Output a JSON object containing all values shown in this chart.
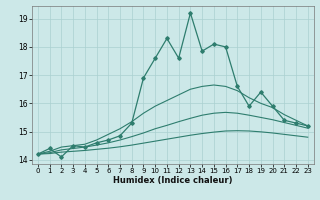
{
  "x": [
    0,
    1,
    2,
    3,
    4,
    5,
    6,
    7,
    8,
    9,
    10,
    11,
    12,
    13,
    14,
    15,
    16,
    17,
    18,
    19,
    20,
    21,
    22,
    23
  ],
  "main_y": [
    14.2,
    14.4,
    14.1,
    14.5,
    14.45,
    14.6,
    14.7,
    14.85,
    15.3,
    16.9,
    17.6,
    18.3,
    17.6,
    19.2,
    17.85,
    18.1,
    18.0,
    16.6,
    15.9,
    16.4,
    15.9,
    15.4,
    15.3,
    15.2
  ],
  "smooth_upper_y": [
    14.2,
    14.3,
    14.45,
    14.5,
    14.55,
    14.7,
    14.9,
    15.1,
    15.35,
    15.65,
    15.9,
    16.1,
    16.3,
    16.5,
    16.6,
    16.65,
    16.6,
    16.45,
    16.2,
    16.0,
    15.85,
    15.6,
    15.4,
    15.2
  ],
  "smooth_mid_y": [
    14.2,
    14.25,
    14.35,
    14.4,
    14.45,
    14.52,
    14.6,
    14.7,
    14.82,
    14.95,
    15.1,
    15.22,
    15.35,
    15.47,
    15.58,
    15.65,
    15.68,
    15.65,
    15.58,
    15.5,
    15.42,
    15.32,
    15.22,
    15.12
  ],
  "smooth_lower_y": [
    14.2,
    14.22,
    14.27,
    14.3,
    14.33,
    14.37,
    14.41,
    14.46,
    14.52,
    14.59,
    14.66,
    14.73,
    14.8,
    14.87,
    14.93,
    14.98,
    15.02,
    15.03,
    15.02,
    14.99,
    14.95,
    14.9,
    14.85,
    14.8
  ],
  "color": "#2e7d6e",
  "bg_color": "#cce8e8",
  "grid_color": "#aad0d0",
  "ylim": [
    13.85,
    19.45
  ],
  "xlim": [
    -0.5,
    23.5
  ],
  "yticks": [
    14,
    15,
    16,
    17,
    18,
    19
  ],
  "xticks": [
    0,
    1,
    2,
    3,
    4,
    5,
    6,
    7,
    8,
    9,
    10,
    11,
    12,
    13,
    14,
    15,
    16,
    17,
    18,
    19,
    20,
    21,
    22,
    23
  ],
  "xlabel": "Humidex (Indice chaleur)"
}
